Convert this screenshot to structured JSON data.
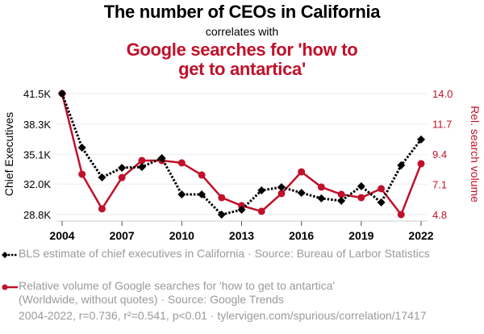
{
  "header": {
    "title": "The number of CEOs in California",
    "subtitle": "correlates with",
    "title2": "Google searches for 'how to get to antartica'"
  },
  "legend": {
    "series1": "BLS estimate of chief executives in California · Source: Bureau of Larbor Statistics",
    "series2": "Relative volume of Google searches for 'how to get to antartica' (Worldwide, without quotes) · Source: Google Trends"
  },
  "footer": "2004-2022, r=0.736, r²=0.541, p<0.01 · tylervigen.com/spurious/correlation/17417",
  "colors": {
    "series1": "#000000",
    "series2": "#c0112a",
    "grid": "#eeeeee",
    "axis_text": "#000000"
  },
  "chart_data": {
    "type": "line",
    "title": "The number of CEOs in California correlates with Google searches for 'how to get to antartica'",
    "x": [
      2004,
      2005,
      2006,
      2007,
      2008,
      2009,
      2010,
      2011,
      2012,
      2013,
      2014,
      2015,
      2016,
      2017,
      2018,
      2019,
      2020,
      2021,
      2022
    ],
    "xticks": [
      "2004",
      "2007",
      "2010",
      "2013",
      "2016",
      "2019",
      "2022"
    ],
    "xlim": [
      2004,
      2022
    ],
    "grid": true,
    "legend_position": "bottom",
    "y_left": {
      "label": "Chief Executives",
      "ticks": [
        "41.5K",
        "38.3K",
        "35.1K",
        "32.0K",
        "28.8K"
      ],
      "tick_values": [
        41500,
        38300,
        35100,
        32000,
        28800
      ],
      "ylim": [
        28800,
        41500
      ]
    },
    "y_right": {
      "label": "Rel. search volume",
      "ticks": [
        "14.0",
        "11.7",
        "9.4",
        "7.1",
        "4.8"
      ],
      "tick_values": [
        14.0,
        11.7,
        9.4,
        7.1,
        4.8
      ],
      "ylim": [
        4.8,
        14.0
      ]
    },
    "series": [
      {
        "name": "BLS estimate of chief executives in California",
        "axis": "left",
        "style": "dotted-diamond",
        "values": [
          41500,
          35830,
          32700,
          33710,
          33800,
          34730,
          30920,
          30920,
          28800,
          29310,
          31340,
          31680,
          31090,
          30500,
          30250,
          31770,
          30080,
          33970,
          36680
        ]
      },
      {
        "name": "Relative volume of Google searches for 'how to get to antartica'",
        "axis": "right",
        "style": "solid-circle",
        "values": [
          14.0,
          7.87,
          5.24,
          7.62,
          8.91,
          8.91,
          8.73,
          7.81,
          6.09,
          5.48,
          5.05,
          6.4,
          8.05,
          6.89,
          6.34,
          6.09,
          6.77,
          4.8,
          8.67
        ]
      }
    ]
  }
}
